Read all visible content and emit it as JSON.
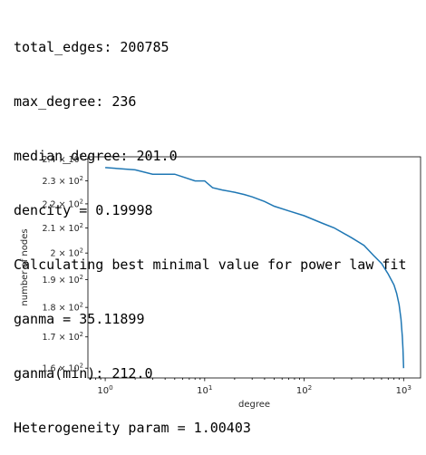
{
  "output_lines": [
    "total_edges: 200785",
    "max_degree: 236",
    "median_degree: 201.0",
    "dencity = 0.19998",
    "Calculating best minimal value for power law fit",
    "ganma = 35.11899",
    "ganma(min): 212.0",
    "Heterogeneity param = 1.00403"
  ],
  "chart_data": {
    "type": "line",
    "xlabel": "degree",
    "ylabel": "number of nodes",
    "xscale": "log",
    "yscale": "log",
    "xlim": [
      0.67,
      1480
    ],
    "ylim": [
      157,
      241
    ],
    "grid": false,
    "line_color": "#1f77b4",
    "x_ticks": [
      {
        "value": 1,
        "label_base": "10",
        "label_exp": "0"
      },
      {
        "value": 10,
        "label_base": "10",
        "label_exp": "1"
      },
      {
        "value": 100,
        "label_base": "10",
        "label_exp": "2"
      },
      {
        "value": 1000,
        "label_base": "10",
        "label_exp": "3"
      }
    ],
    "y_ticks": [
      {
        "value": 240,
        "label_base": "2.4 × 10",
        "label_exp": "2"
      },
      {
        "value": 230,
        "label_base": "2.3 × 10",
        "label_exp": "2"
      },
      {
        "value": 220,
        "label_base": "2.2 × 10",
        "label_exp": "2"
      },
      {
        "value": 210,
        "label_base": "2.1 × 10",
        "label_exp": "2"
      },
      {
        "value": 200,
        "label_base": "2 × 10",
        "label_exp": "2"
      },
      {
        "value": 190,
        "label_base": "1.9 × 10",
        "label_exp": "2"
      },
      {
        "value": 180,
        "label_base": "1.8 × 10",
        "label_exp": "2"
      },
      {
        "value": 170,
        "label_base": "1.7 × 10",
        "label_exp": "2"
      },
      {
        "value": 160,
        "label_base": "1.6 × 10",
        "label_exp": "2"
      }
    ],
    "series": [
      {
        "x": [
          1,
          2,
          3,
          5,
          8,
          10,
          12,
          15,
          20,
          25,
          30,
          40,
          50,
          70,
          100,
          150,
          200,
          300,
          400,
          500,
          600,
          700,
          800,
          850,
          900,
          940,
          970,
          985,
          1000
        ],
        "y": [
          236,
          235,
          233,
          233,
          230,
          230,
          227,
          226,
          225,
          224,
          223,
          221,
          219,
          217,
          215,
          212,
          210,
          206,
          203,
          199,
          196,
          192,
          188,
          185,
          181,
          176,
          170,
          166,
          160
        ]
      }
    ]
  }
}
